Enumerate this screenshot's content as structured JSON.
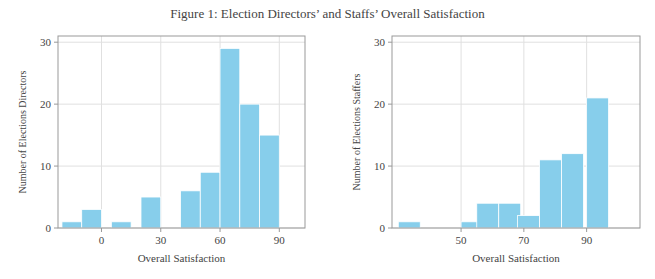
{
  "title": "Figure 1: Election Directors’ and Staffs’ Overall Satisfaction",
  "chart_data": [
    {
      "type": "bar",
      "xlabel": "Overall Satisfaction",
      "ylabel": "Number of Elections Directors",
      "x": [
        -20,
        -10,
        5,
        20,
        40,
        50,
        60,
        70,
        80,
        90
      ],
      "width": 10,
      "values": [
        1,
        3,
        1,
        5,
        6,
        9,
        29,
        20,
        15,
        0
      ],
      "color": "#87CEEB",
      "xlim": [
        -22,
        103
      ],
      "ylim": [
        0,
        31
      ],
      "xticks": [
        0,
        30,
        60,
        90
      ],
      "yticks": [
        0,
        10,
        20,
        30
      ],
      "grid": true
    },
    {
      "type": "bar",
      "xlabel": "Overall Satisfaction",
      "ylabel": "Number of Elections Staffers",
      "x": [
        30,
        50,
        55,
        62,
        68,
        75,
        82,
        90,
        97
      ],
      "width": 7,
      "values": [
        1,
        1,
        4,
        4,
        2,
        11,
        12,
        21,
        0
      ],
      "color": "#87CEEB",
      "xlim": [
        28,
        107
      ],
      "ylim": [
        0,
        31
      ],
      "xticks": [
        50,
        70,
        90
      ],
      "yticks": [
        0,
        10,
        20,
        30
      ],
      "grid": true
    }
  ]
}
